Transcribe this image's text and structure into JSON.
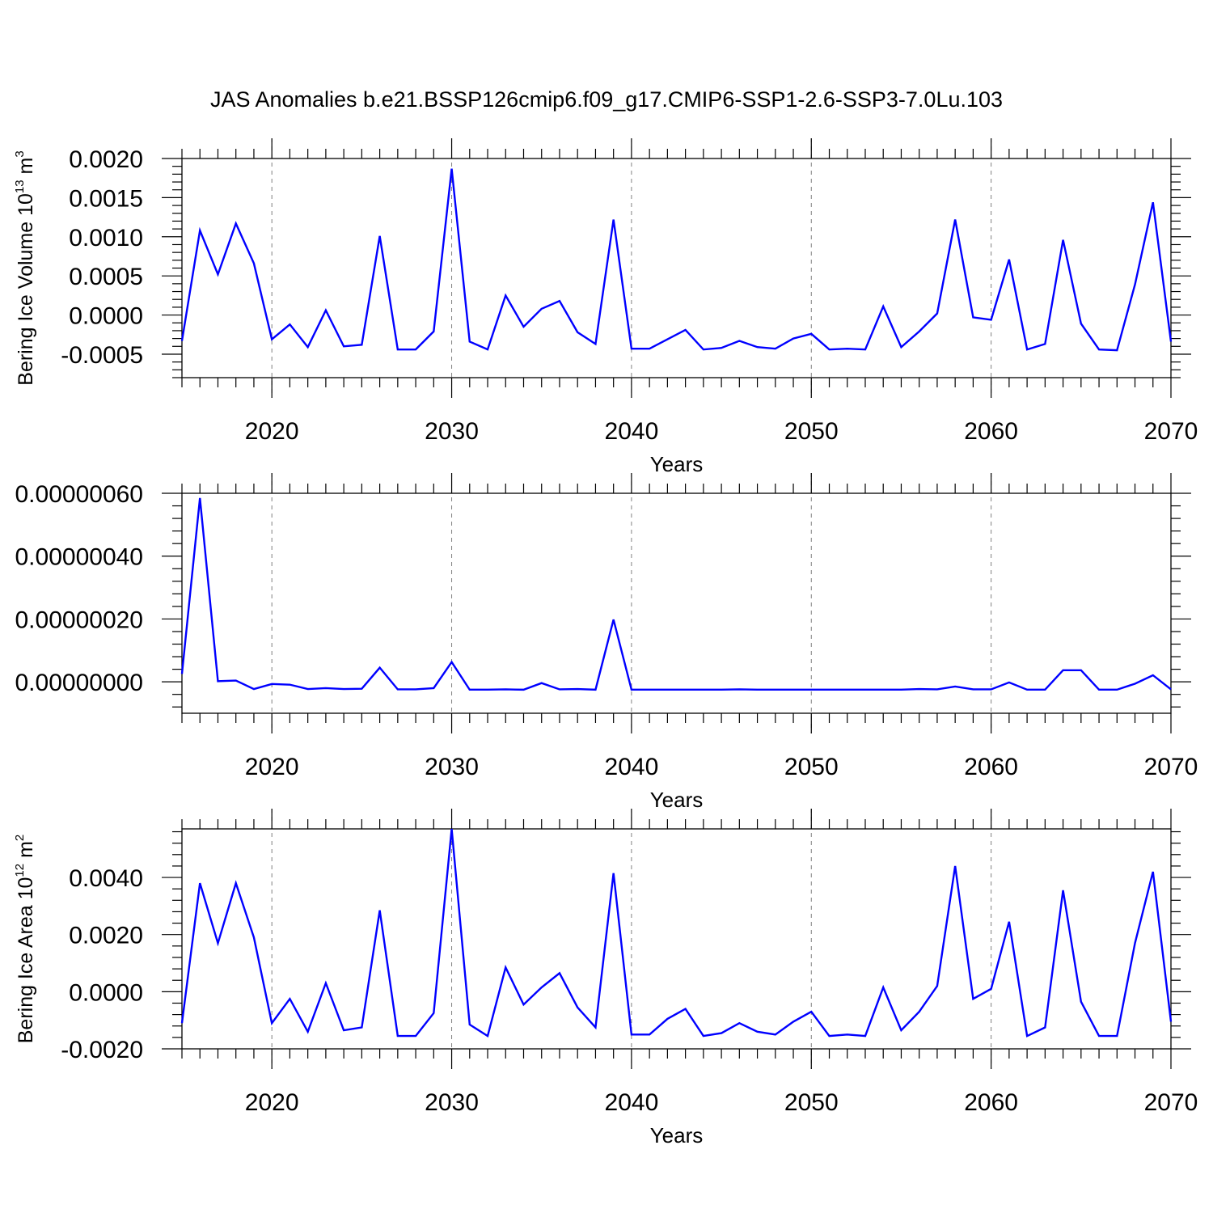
{
  "title": "JAS Anomalies b.e21.BSSP126cmip6.f09_g17.CMIP6-SSP1-2.6-SSP3-7.0Lu.103",
  "colors": {
    "line": "#0000ff",
    "axis": "#000000",
    "grid": "#808080"
  },
  "chart_data": [
    {
      "type": "line",
      "ylabel": {
        "main": "Bering Ice Volume 10",
        "exp": "13",
        "unit": " m",
        "unit_exp": "3"
      },
      "xlabel": "Years",
      "xlim": [
        2015,
        2070
      ],
      "ylim": [
        -0.0008,
        0.002
      ],
      "x_ticks": [
        2020,
        2030,
        2040,
        2050,
        2060,
        2070
      ],
      "x_tick_labels": [
        "2020",
        "2030",
        "2040",
        "2050",
        "2060",
        "2070"
      ],
      "y_ticks": [
        -0.0005,
        0.0,
        0.0005,
        0.001,
        0.0015,
        0.002
      ],
      "y_tick_labels": [
        "-0.0005",
        "0.0000",
        "0.0005",
        "0.0010",
        "0.0015",
        "0.0020"
      ],
      "grid": "vertical dashed at labeled years",
      "x": [
        2015,
        2016,
        2017,
        2018,
        2019,
        2020,
        2021,
        2022,
        2023,
        2024,
        2025,
        2026,
        2027,
        2028,
        2029,
        2030,
        2031,
        2032,
        2033,
        2034,
        2035,
        2036,
        2037,
        2038,
        2039,
        2040,
        2041,
        2042,
        2043,
        2044,
        2045,
        2046,
        2047,
        2048,
        2049,
        2050,
        2051,
        2052,
        2053,
        2054,
        2055,
        2056,
        2057,
        2058,
        2059,
        2060,
        2061,
        2062,
        2063,
        2064,
        2065,
        2066,
        2067,
        2068,
        2069,
        2070
      ],
      "y": [
        -0.00033,
        0.00108,
        0.00052,
        0.00117,
        0.00066,
        -0.00031,
        -0.00012,
        -0.00041,
        6e-05,
        -0.0004,
        -0.00038,
        0.00101,
        -0.00044,
        -0.00044,
        -0.00021,
        0.00187,
        -0.00034,
        -0.00044,
        0.00025,
        -0.00015,
        8e-05,
        0.00018,
        -0.00022,
        -0.00037,
        0.00122,
        -0.00043,
        -0.00043,
        -0.00031,
        -0.00019,
        -0.00044,
        -0.00042,
        -0.00033,
        -0.00041,
        -0.00043,
        -0.0003,
        -0.00024,
        -0.00044,
        -0.00043,
        -0.00044,
        0.00011,
        -0.00041,
        -0.00021,
        2e-05,
        0.00122,
        -3e-05,
        -6e-05,
        0.00071,
        -0.00044,
        -0.00037,
        0.00096,
        -0.00011,
        -0.00044,
        -0.00045,
        0.00039,
        0.00144,
        -0.00034
      ]
    },
    {
      "type": "line",
      "ylabel": null,
      "xlabel": "Years",
      "xlim": [
        2015,
        2070
      ],
      "ylim": [
        -1e-07,
        6e-07
      ],
      "x_ticks": [
        2020,
        2030,
        2040,
        2050,
        2060,
        2070
      ],
      "x_tick_labels": [
        "2020",
        "2030",
        "2040",
        "2050",
        "2060",
        "2070"
      ],
      "y_ticks": [
        0.0,
        2e-07,
        4e-07,
        6e-07
      ],
      "y_tick_labels": [
        "0.00000000",
        "0.00000020",
        "0.00000040",
        "0.00000060"
      ],
      "grid": "vertical dashed at labeled years",
      "x": [
        2015,
        2016,
        2017,
        2018,
        2019,
        2020,
        2021,
        2022,
        2023,
        2024,
        2025,
        2026,
        2027,
        2028,
        2029,
        2030,
        2031,
        2032,
        2033,
        2034,
        2035,
        2036,
        2037,
        2038,
        2039,
        2040,
        2041,
        2042,
        2043,
        2044,
        2045,
        2046,
        2047,
        2048,
        2049,
        2050,
        2051,
        2052,
        2053,
        2054,
        2055,
        2056,
        2057,
        2058,
        2059,
        2060,
        2061,
        2062,
        2063,
        2064,
        2065,
        2066,
        2067,
        2068,
        2069,
        2070
      ],
      "y": [
        2.5e-08,
        5.85e-07,
        2e-09,
        4e-09,
        -2.3e-08,
        -7e-09,
        -9e-09,
        -2.3e-08,
        -2e-08,
        -2.3e-08,
        -2.2e-08,
        4.5e-08,
        -2.4e-08,
        -2.4e-08,
        -2e-08,
        6.3e-08,
        -2.5e-08,
        -2.5e-08,
        -2.4e-08,
        -2.5e-08,
        -4e-09,
        -2.4e-08,
        -2.3e-08,
        -2.5e-08,
        1.98e-07,
        -2.5e-08,
        -2.5e-08,
        -2.5e-08,
        -2.5e-08,
        -2.5e-08,
        -2.5e-08,
        -2.4e-08,
        -2.5e-08,
        -2.5e-08,
        -2.5e-08,
        -2.5e-08,
        -2.5e-08,
        -2.5e-08,
        -2.5e-08,
        -2.5e-08,
        -2.5e-08,
        -2.3e-08,
        -2.4e-08,
        -1.5e-08,
        -2.4e-08,
        -2.4e-08,
        -2e-09,
        -2.5e-08,
        -2.5e-08,
        3.7e-08,
        3.7e-08,
        -2.5e-08,
        -2.5e-08,
        -6e-09,
        2.1e-08,
        -2.4e-08
      ]
    },
    {
      "type": "line",
      "ylabel": {
        "main": "Bering Ice Area 10",
        "exp": "12",
        "unit": " m",
        "unit_exp": "2"
      },
      "xlabel": "Years",
      "xlim": [
        2015,
        2070
      ],
      "ylim": [
        -0.002,
        0.0057
      ],
      "x_ticks": [
        2020,
        2030,
        2040,
        2050,
        2060,
        2070
      ],
      "x_tick_labels": [
        "2020",
        "2030",
        "2040",
        "2050",
        "2060",
        "2070"
      ],
      "y_ticks": [
        -0.002,
        0.0,
        0.002,
        0.004
      ],
      "y_tick_labels": [
        "-0.0020",
        "0.0000",
        "0.0020",
        "0.0040"
      ],
      "grid": "vertical dashed at labeled years",
      "x": [
        2015,
        2016,
        2017,
        2018,
        2019,
        2020,
        2021,
        2022,
        2023,
        2024,
        2025,
        2026,
        2027,
        2028,
        2029,
        2030,
        2031,
        2032,
        2033,
        2034,
        2035,
        2036,
        2037,
        2038,
        2039,
        2040,
        2041,
        2042,
        2043,
        2044,
        2045,
        2046,
        2047,
        2048,
        2049,
        2050,
        2051,
        2052,
        2053,
        2054,
        2055,
        2056,
        2057,
        2058,
        2059,
        2060,
        2061,
        2062,
        2063,
        2064,
        2065,
        2066,
        2067,
        2068,
        2069,
        2070
      ],
      "y": [
        -0.0011,
        0.0038,
        0.0017,
        0.0038,
        0.0019,
        -0.0011,
        -0.00025,
        -0.0014,
        0.0003,
        -0.00135,
        -0.00125,
        0.00285,
        -0.00155,
        -0.00155,
        -0.00075,
        0.0057,
        -0.00115,
        -0.00155,
        0.00085,
        -0.00045,
        0.00015,
        0.00065,
        -0.00055,
        -0.00125,
        0.00415,
        -0.0015,
        -0.0015,
        -0.00095,
        -0.0006,
        -0.00155,
        -0.00145,
        -0.0011,
        -0.0014,
        -0.0015,
        -0.00105,
        -0.0007,
        -0.00155,
        -0.0015,
        -0.00155,
        0.00015,
        -0.00135,
        -0.0007,
        0.0002,
        0.0044,
        -0.00025,
        0.0001,
        0.00245,
        -0.00155,
        -0.00125,
        0.00355,
        -0.00035,
        -0.00155,
        -0.00155,
        0.0017,
        0.0042,
        -0.00105
      ]
    }
  ]
}
